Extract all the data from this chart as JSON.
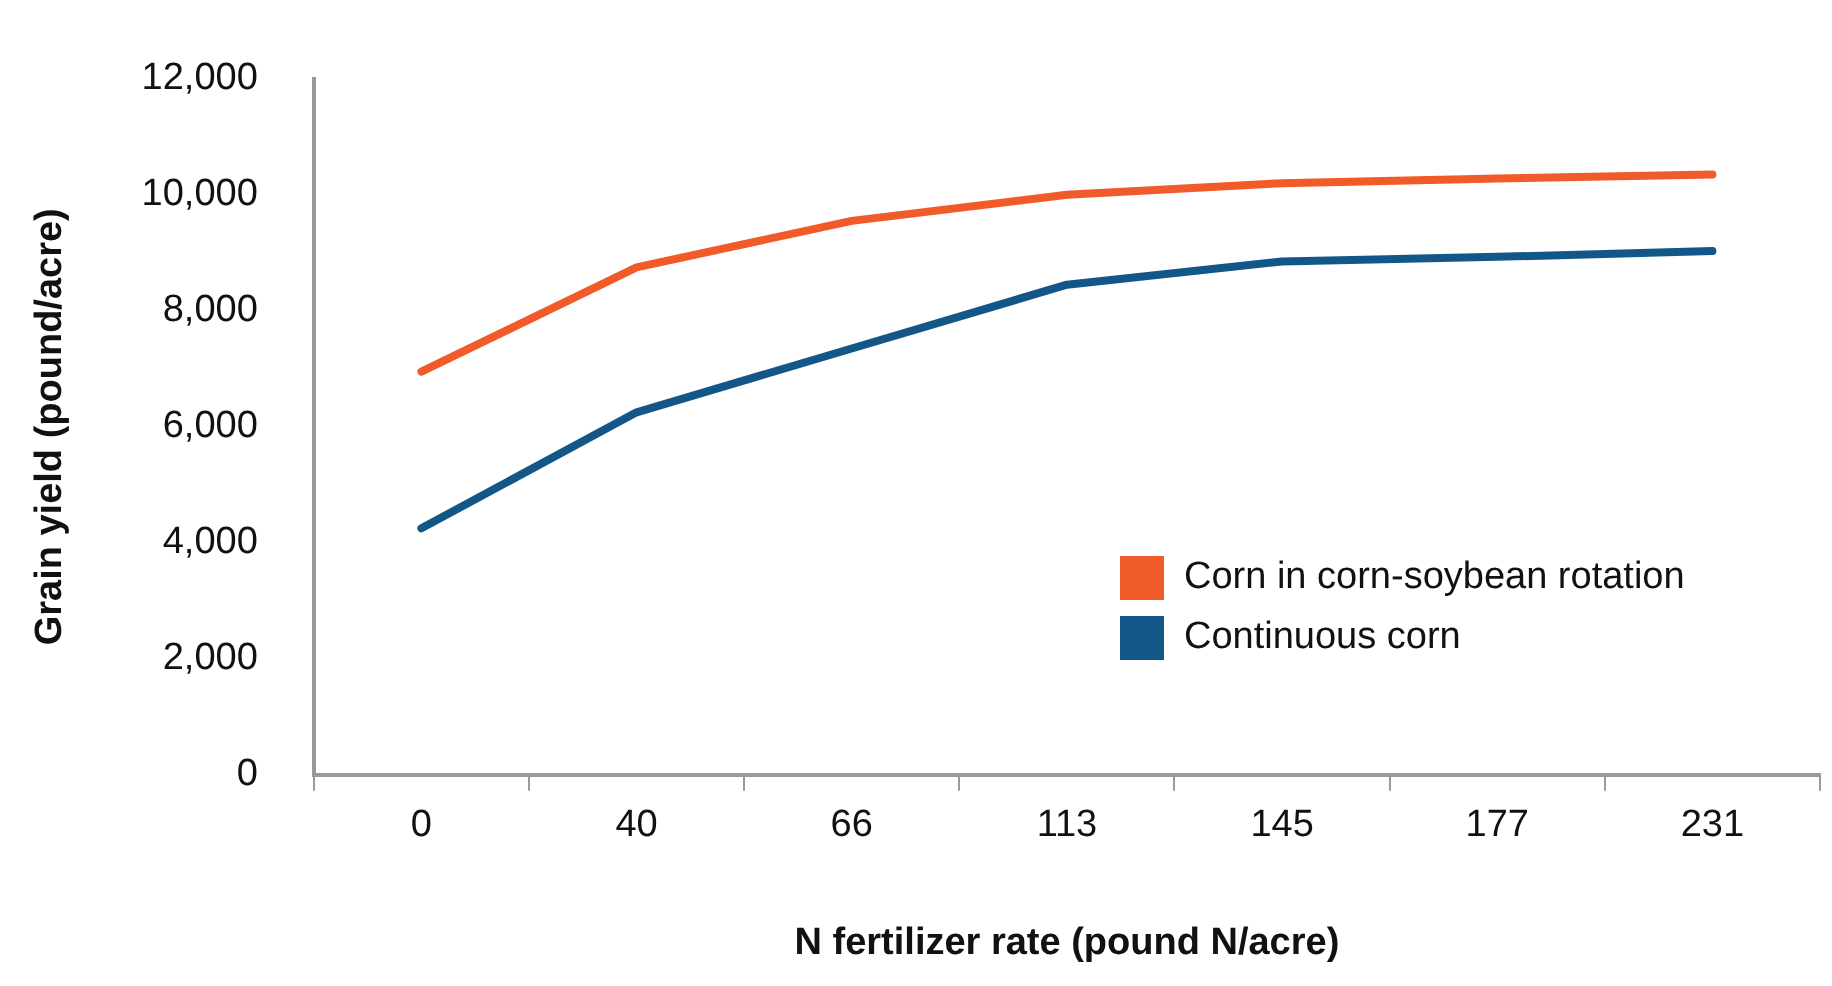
{
  "chart_data": {
    "type": "line",
    "xlabel": "N fertilizer rate (pound N/acre)",
    "ylabel": "Grain yield (pound/acre)",
    "categories": [
      "0",
      "40",
      "66",
      "113",
      "145",
      "177",
      "231"
    ],
    "series": [
      {
        "name": "Corn in corn-soybean rotation",
        "color": "#f15a29",
        "values": [
          6950,
          8750,
          9550,
          10000,
          10200,
          10280,
          10350
        ]
      },
      {
        "name": "Continuous corn",
        "color": "#135788",
        "values": [
          4250,
          6250,
          7350,
          8450,
          8850,
          8930,
          9030
        ]
      }
    ],
    "ylim": [
      0,
      12000
    ],
    "yticks": [
      {
        "value": 0,
        "label": "0"
      },
      {
        "value": 2000,
        "label": "2,000"
      },
      {
        "value": 4000,
        "label": "4,000"
      },
      {
        "value": 6000,
        "label": "6,000"
      },
      {
        "value": 8000,
        "label": "8,000"
      },
      {
        "value": 10000,
        "label": "10,000"
      },
      {
        "value": 12000,
        "label": "12,000"
      }
    ],
    "grid": false,
    "legend": "right",
    "marker": "none",
    "line_style": "solid"
  }
}
